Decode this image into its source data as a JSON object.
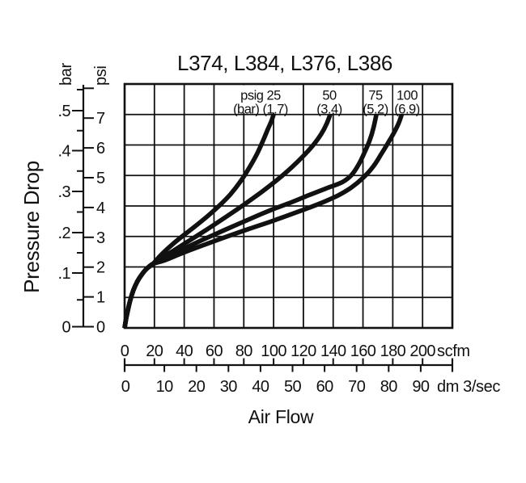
{
  "colors": {
    "ink": "#111111",
    "paper": "#ffffff"
  },
  "chart_data": {
    "type": "line",
    "title": "L374, L384, L376, L386",
    "grid": true,
    "legend_position": "top-inside",
    "x_axis": {
      "label": "Air Flow",
      "scales": [
        {
          "unit": "scfm",
          "tick_values": [
            0,
            20,
            40,
            60,
            80,
            100,
            120,
            140,
            160,
            180,
            200
          ],
          "tick_labels": [
            "0",
            "20",
            "40",
            "60",
            "80",
            "100",
            "120",
            "140",
            "160",
            "180",
            "200"
          ],
          "range": [
            0,
            220
          ]
        },
        {
          "unit": "dm 3/sec",
          "tick_values": [
            0,
            10,
            20,
            30,
            40,
            50,
            60,
            70,
            80,
            90
          ],
          "tick_labels": [
            "0",
            "10",
            "20",
            "30",
            "40",
            "50",
            "60",
            "70",
            "80",
            "90"
          ]
        }
      ]
    },
    "y_axis": {
      "label": "Pressure Drop",
      "scales": [
        {
          "unit": "bar",
          "tick_values": [
            0,
            0.1,
            0.2,
            0.3,
            0.4,
            0.5
          ],
          "tick_labels": [
            "0",
            ".1",
            ".2",
            ".3",
            ".4",
            ".5"
          ],
          "minor_step": 0.05
        },
        {
          "unit": "psi",
          "tick_values": [
            0,
            1,
            2,
            3,
            4,
            5,
            6,
            7
          ],
          "tick_labels": [
            "0",
            "1",
            "2",
            "3",
            "4",
            "5",
            "6",
            "7"
          ],
          "range": [
            0,
            8
          ]
        }
      ]
    },
    "series": [
      {
        "name": "25 psig (1.7 bar) inlet pressure",
        "label_line1": "psig 25",
        "label_line2": "(bar) (1.7)",
        "points_scfm_psi": [
          [
            0,
            0
          ],
          [
            1,
            0.3
          ],
          [
            2.5,
            0.65
          ],
          [
            4,
            0.95
          ],
          [
            6,
            1.25
          ],
          [
            8.5,
            1.52
          ],
          [
            11.5,
            1.75
          ],
          [
            15,
            1.95
          ],
          [
            19,
            2.1
          ],
          [
            24,
            2.37
          ],
          [
            30,
            2.65
          ],
          [
            38,
            2.98
          ],
          [
            47,
            3.32
          ],
          [
            56,
            3.68
          ],
          [
            64,
            4.03
          ],
          [
            71,
            4.38
          ],
          [
            78,
            4.82
          ],
          [
            84,
            5.28
          ],
          [
            89,
            5.72
          ],
          [
            93,
            6.15
          ],
          [
            96,
            6.5
          ],
          [
            98.5,
            6.78
          ],
          [
            100,
            7.0
          ]
        ]
      },
      {
        "name": "50 psig (3.4 bar) inlet pressure",
        "label_line1": "50",
        "label_line2": "(3.4)",
        "points_scfm_psi": [
          [
            0,
            0
          ],
          [
            1,
            0.3
          ],
          [
            2.5,
            0.65
          ],
          [
            4,
            0.95
          ],
          [
            6,
            1.25
          ],
          [
            8.5,
            1.52
          ],
          [
            11.5,
            1.75
          ],
          [
            15,
            1.95
          ],
          [
            19,
            2.1
          ],
          [
            25,
            2.3
          ],
          [
            33,
            2.54
          ],
          [
            43,
            2.85
          ],
          [
            55,
            3.22
          ],
          [
            68,
            3.64
          ],
          [
            80,
            4.04
          ],
          [
            92,
            4.46
          ],
          [
            103,
            4.88
          ],
          [
            112,
            5.26
          ],
          [
            120,
            5.64
          ],
          [
            127,
            6.02
          ],
          [
            132,
            6.36
          ],
          [
            135.5,
            6.68
          ],
          [
            138,
            7.0
          ]
        ]
      },
      {
        "name": "75 psig (5.2 bar) inlet pressure",
        "label_line1": "75",
        "label_line2": "(5.2)",
        "points_scfm_psi": [
          [
            0,
            0
          ],
          [
            1,
            0.3
          ],
          [
            2.5,
            0.65
          ],
          [
            4,
            0.95
          ],
          [
            6,
            1.25
          ],
          [
            8.5,
            1.52
          ],
          [
            11.5,
            1.75
          ],
          [
            15,
            1.95
          ],
          [
            19,
            2.1
          ],
          [
            26,
            2.26
          ],
          [
            36,
            2.5
          ],
          [
            48,
            2.79
          ],
          [
            62,
            3.1
          ],
          [
            76,
            3.4
          ],
          [
            90,
            3.7
          ],
          [
            101,
            3.92
          ],
          [
            113,
            4.14
          ],
          [
            124,
            4.36
          ],
          [
            135,
            4.57
          ],
          [
            146,
            4.78
          ],
          [
            152,
            5.0
          ],
          [
            157,
            5.35
          ],
          [
            161,
            5.75
          ],
          [
            164.5,
            6.15
          ],
          [
            167,
            6.55
          ],
          [
            169,
            7.0
          ]
        ]
      },
      {
        "name": "100 psig (6.9 bar) inlet pressure",
        "label_line1": "100",
        "label_line2": "(6.9)",
        "points_scfm_psi": [
          [
            0,
            0
          ],
          [
            1,
            0.3
          ],
          [
            2.5,
            0.65
          ],
          [
            4,
            0.95
          ],
          [
            6,
            1.25
          ],
          [
            8.5,
            1.52
          ],
          [
            11.5,
            1.75
          ],
          [
            15,
            1.95
          ],
          [
            19,
            2.1
          ],
          [
            27,
            2.22
          ],
          [
            38,
            2.44
          ],
          [
            51,
            2.68
          ],
          [
            66,
            2.95
          ],
          [
            83,
            3.24
          ],
          [
            100,
            3.52
          ],
          [
            117,
            3.82
          ],
          [
            131,
            4.08
          ],
          [
            143,
            4.34
          ],
          [
            152,
            4.6
          ],
          [
            160,
            4.92
          ],
          [
            167,
            5.3
          ],
          [
            172,
            5.68
          ],
          [
            177,
            6.08
          ],
          [
            181,
            6.42
          ],
          [
            184,
            6.72
          ],
          [
            186,
            7.0
          ]
        ]
      }
    ]
  }
}
